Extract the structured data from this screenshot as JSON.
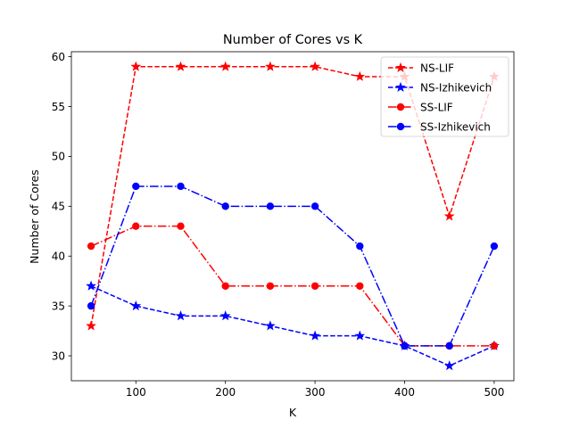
{
  "chart_data": {
    "type": "line",
    "title": "Number of Cores vs K",
    "xlabel": "K",
    "ylabel": "Number of Cores",
    "xlim": [
      28,
      522
    ],
    "ylim": [
      27.5,
      60.5
    ],
    "xticks": [
      100,
      200,
      300,
      400,
      500
    ],
    "yticks": [
      30,
      35,
      40,
      45,
      50,
      55,
      60
    ],
    "grid": false,
    "legend_position": "top-right",
    "x": [
      50,
      100,
      150,
      200,
      250,
      300,
      350,
      400,
      450,
      500
    ],
    "series": [
      {
        "name": "NS-LIF",
        "color": "#ff0000",
        "dash": "dashed",
        "marker": "star",
        "values": [
          33,
          59,
          59,
          59,
          59,
          59,
          58,
          58,
          44,
          58
        ]
      },
      {
        "name": "NS-Izhikevich",
        "color": "#0000ff",
        "dash": "dashed",
        "marker": "star",
        "values": [
          37,
          35,
          34,
          34,
          33,
          32,
          32,
          31,
          29,
          31
        ]
      },
      {
        "name": "SS-LIF",
        "color": "#ff0000",
        "dash": "dashdot",
        "marker": "circle",
        "values": [
          41,
          43,
          43,
          37,
          37,
          37,
          37,
          31,
          31,
          31
        ]
      },
      {
        "name": "SS-Izhikevich",
        "color": "#0000ff",
        "dash": "dashdot",
        "marker": "circle",
        "values": [
          35,
          47,
          47,
          45,
          45,
          45,
          41,
          31,
          31,
          41
        ]
      }
    ]
  }
}
